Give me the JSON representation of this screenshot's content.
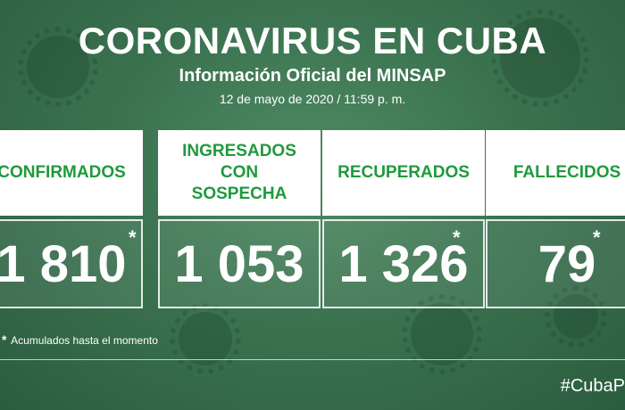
{
  "header": {
    "title": "CORONAVIRUS EN CUBA",
    "subtitle": "Información Oficial del MINSAP",
    "date": "12 de mayo de 2020 / 11:59 p. m."
  },
  "cards": [
    {
      "label": "CONFIRMADOS",
      "value": "1 810",
      "mark": "*"
    },
    {
      "label": "INGRESADOS CON SOSPECHA",
      "value": "1 053",
      "mark": ""
    },
    {
      "label": "RECUPERADOS",
      "value": "1 326",
      "mark": "*"
    },
    {
      "label": "FALLECIDOS",
      "value": "79",
      "mark": "*"
    }
  ],
  "footnote": {
    "mark": "*",
    "text": "Acumulados hasta el momento"
  },
  "hashtag": "#CubaP",
  "colors": {
    "background": "#3b7350",
    "label_text": "#1f9a3c",
    "card_bg": "#ffffff"
  }
}
